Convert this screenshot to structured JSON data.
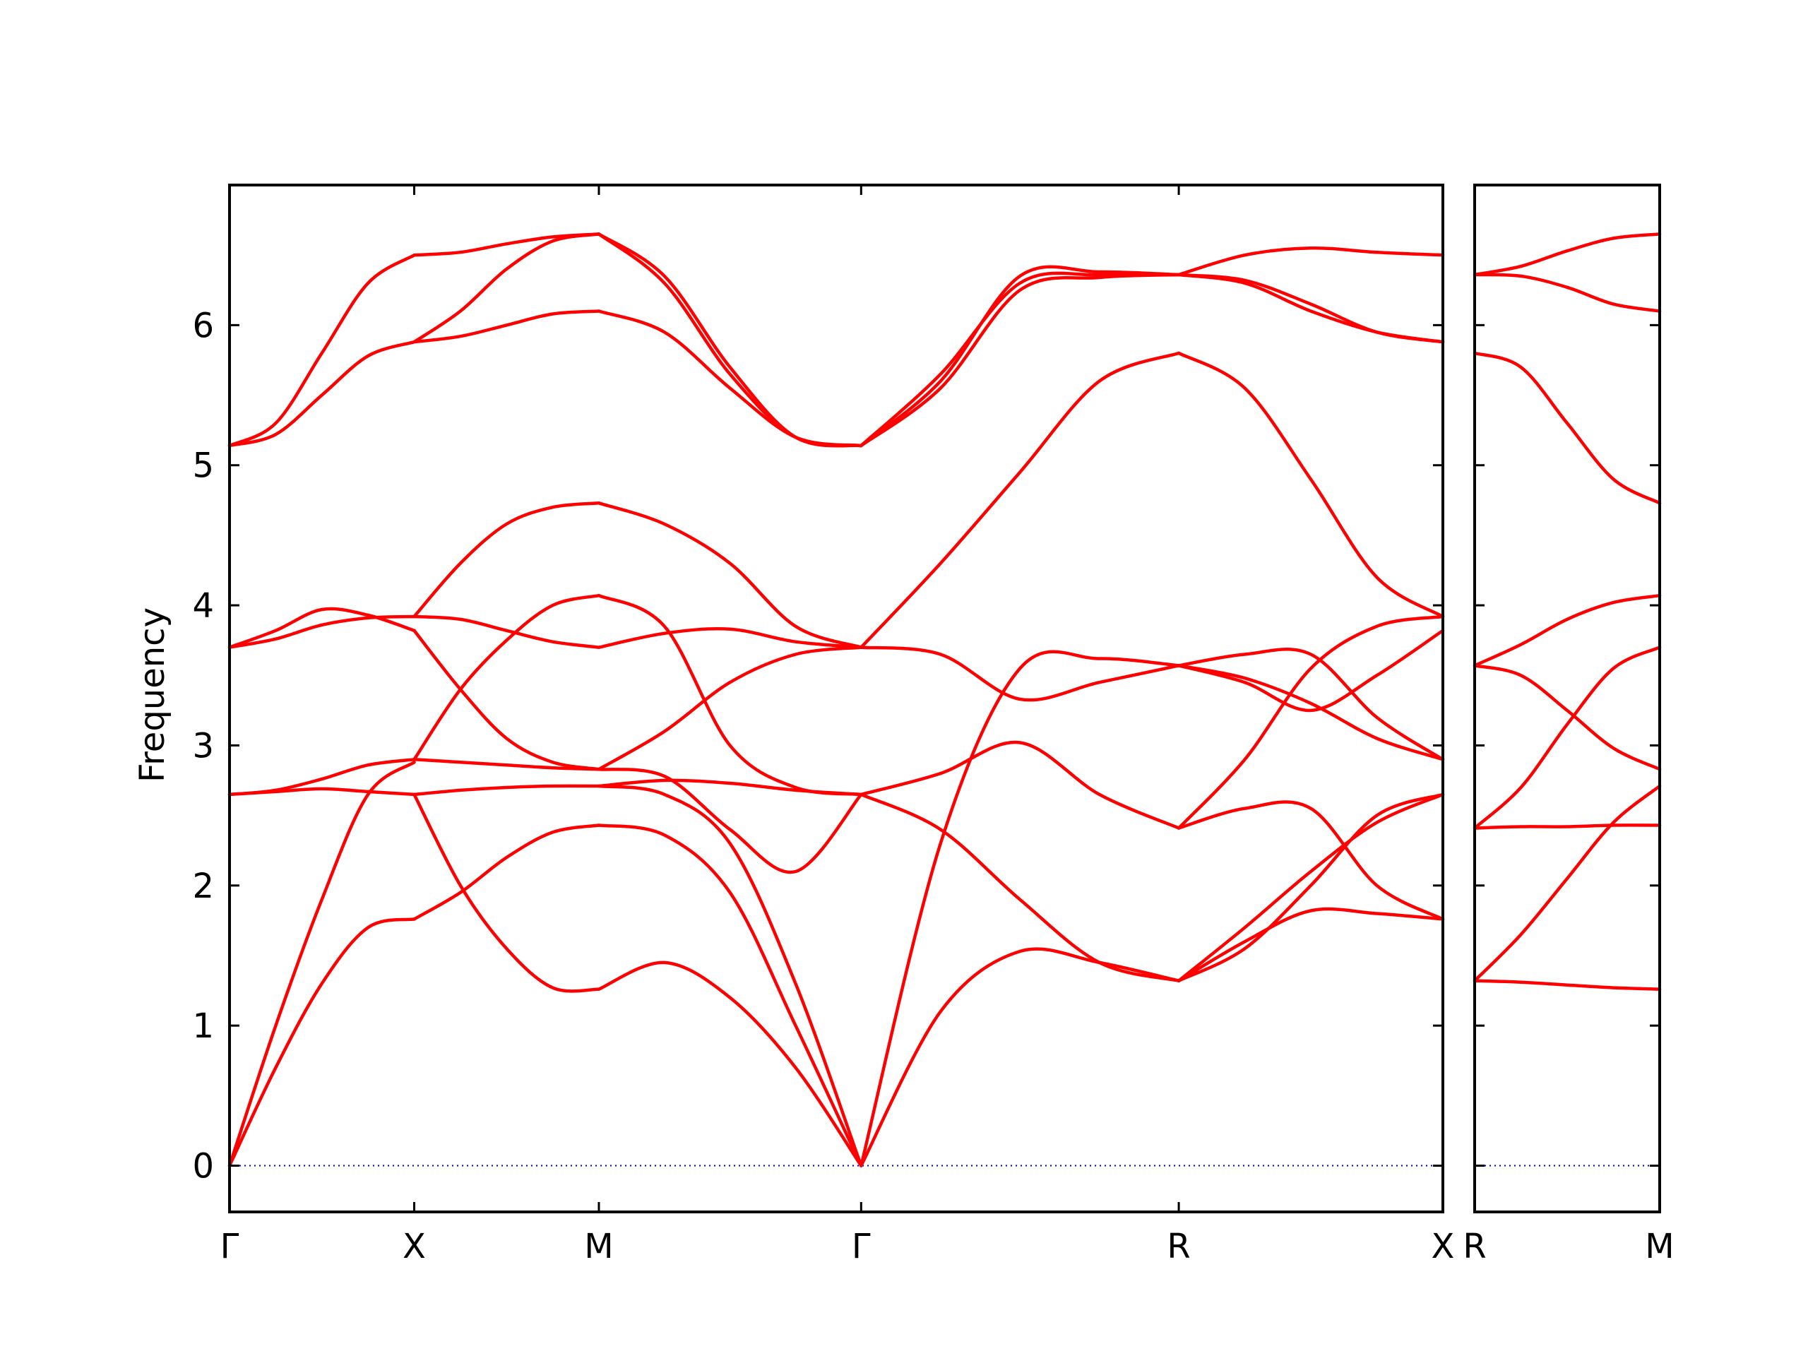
{
  "chart_data": {
    "type": "line",
    "title": "",
    "ylabel": "Frequency",
    "xlabel": "",
    "ylim": [
      -0.33,
      7.0
    ],
    "yticks": [
      0,
      1,
      2,
      3,
      4,
      5,
      6
    ],
    "grid": false,
    "legend": "none",
    "colors": {
      "band": "#ff0000",
      "zero_line": "#0000cc",
      "axes": "#000000"
    },
    "panels": [
      {
        "name": "main",
        "labels": [
          "Γ",
          "X",
          "M",
          "Γ",
          "R",
          "X"
        ],
        "path": [
          0,
          1,
          2,
          3.42,
          5.14,
          6.57
        ],
        "segments": [
          {
            "from": "Γ",
            "to": "X",
            "length": 1,
            "bands": [
              [
                0,
                0.7,
                1.3,
                1.7,
                1.76
              ],
              [
                0,
                1.0,
                1.9,
                2.65,
                2.88
              ],
              [
                2.65,
                2.67,
                2.69,
                2.67,
                2.65
              ],
              [
                2.65,
                2.68,
                2.76,
                2.86,
                2.9
              ],
              [
                3.7,
                3.76,
                3.86,
                3.91,
                3.92
              ],
              [
                3.7,
                3.82,
                3.97,
                3.93,
                3.82
              ],
              [
                5.14,
                5.22,
                5.5,
                5.78,
                5.88
              ],
              [
                5.14,
                5.3,
                5.8,
                6.3,
                6.5
              ]
            ]
          },
          {
            "from": "X",
            "to": "M",
            "length": 1,
            "bands": [
              [
                2.65,
                2.0,
                1.55,
                1.27,
                1.26
              ],
              [
                1.76,
                1.95,
                2.2,
                2.38,
                2.43
              ],
              [
                2.65,
                2.68,
                2.7,
                2.71,
                2.71
              ],
              [
                2.9,
                2.88,
                2.86,
                2.84,
                2.83
              ],
              [
                3.82,
                3.4,
                3.05,
                2.88,
                2.83
              ],
              [
                2.9,
                3.4,
                3.75,
                4.0,
                4.07
              ],
              [
                3.92,
                3.9,
                3.82,
                3.74,
                3.7
              ],
              [
                3.92,
                4.3,
                4.58,
                4.7,
                4.73
              ],
              [
                5.88,
                5.92,
                6.0,
                6.08,
                6.1
              ],
              [
                5.88,
                6.1,
                6.4,
                6.6,
                6.65
              ],
              [
                6.5,
                6.52,
                6.58,
                6.63,
                6.65
              ]
            ]
          },
          {
            "from": "M",
            "to": "Γ",
            "length": 1.42,
            "bands": [
              [
                1.26,
                1.45,
                1.2,
                0.7,
                0
              ],
              [
                2.43,
                2.36,
                1.95,
                1.0,
                0
              ],
              [
                2.71,
                2.65,
                2.3,
                1.3,
                0
              ],
              [
                2.71,
                2.75,
                2.73,
                2.68,
                2.65
              ],
              [
                2.83,
                2.78,
                2.4,
                2.1,
                2.65
              ],
              [
                2.83,
                3.1,
                3.45,
                3.65,
                3.7
              ],
              [
                4.07,
                3.85,
                3.0,
                2.7,
                2.65
              ],
              [
                3.7,
                3.8,
                3.83,
                3.74,
                3.7
              ],
              [
                4.73,
                4.58,
                4.3,
                3.85,
                3.7
              ],
              [
                6.1,
                5.95,
                5.55,
                5.2,
                5.14
              ],
              [
                6.65,
                6.35,
                5.7,
                5.2,
                5.14
              ],
              [
                6.65,
                6.3,
                5.65,
                5.2,
                5.14
              ]
            ]
          },
          {
            "from": "Γ",
            "to": "R",
            "length": 1.72,
            "bands": [
              [
                0,
                1.1,
                1.53,
                1.45,
                1.32
              ],
              [
                2.65,
                2.4,
                1.9,
                1.45,
                1.32
              ],
              [
                0,
                2.3,
                3.55,
                3.62,
                3.57
              ],
              [
                2.65,
                2.8,
                3.02,
                2.65,
                2.41
              ],
              [
                3.7,
                3.65,
                3.33,
                3.45,
                3.57
              ],
              [
                3.7,
                4.3,
                4.95,
                5.6,
                5.8
              ],
              [
                5.14,
                5.6,
                6.35,
                6.38,
                6.36
              ],
              [
                5.14,
                5.65,
                6.3,
                6.36,
                6.36
              ],
              [
                5.14,
                5.55,
                6.25,
                6.34,
                6.36
              ]
            ]
          },
          {
            "from": "R",
            "to": "X",
            "length": 1.43,
            "bands": [
              [
                1.32,
                1.6,
                1.82,
                1.8,
                1.76
              ],
              [
                1.32,
                1.7,
                2.1,
                2.45,
                2.65
              ],
              [
                1.32,
                1.55,
                2.0,
                2.5,
                2.65
              ],
              [
                2.41,
                2.55,
                2.55,
                2.0,
                1.76
              ],
              [
                2.41,
                2.9,
                3.55,
                3.85,
                3.92
              ],
              [
                3.57,
                3.65,
                3.65,
                3.2,
                2.9
              ],
              [
                3.57,
                3.45,
                3.25,
                3.5,
                3.82
              ],
              [
                3.57,
                3.48,
                3.3,
                3.05,
                2.9
              ],
              [
                5.8,
                5.55,
                4.9,
                4.2,
                3.92
              ],
              [
                6.36,
                6.3,
                6.1,
                5.95,
                5.88
              ],
              [
                6.36,
                6.5,
                6.55,
                6.52,
                6.5
              ],
              [
                6.36,
                6.32,
                6.15,
                5.95,
                5.88
              ]
            ]
          }
        ]
      },
      {
        "name": "side",
        "labels": [
          "R",
          "M"
        ],
        "path": [
          0,
          1
        ],
        "segments": [
          {
            "from": "R",
            "to": "M",
            "length": 1,
            "bands": [
              [
                1.32,
                1.31,
                1.29,
                1.27,
                1.26
              ],
              [
                1.32,
                1.65,
                2.05,
                2.45,
                2.71
              ],
              [
                2.41,
                2.42,
                2.42,
                2.43,
                2.43
              ],
              [
                2.41,
                2.7,
                3.15,
                3.55,
                3.7
              ],
              [
                3.57,
                3.72,
                3.9,
                4.02,
                4.07
              ],
              [
                3.57,
                3.5,
                3.25,
                2.98,
                2.83
              ],
              [
                5.8,
                5.7,
                5.3,
                4.9,
                4.73
              ],
              [
                6.36,
                6.35,
                6.27,
                6.15,
                6.1
              ],
              [
                6.36,
                6.42,
                6.53,
                6.62,
                6.65
              ]
            ]
          }
        ]
      }
    ]
  }
}
